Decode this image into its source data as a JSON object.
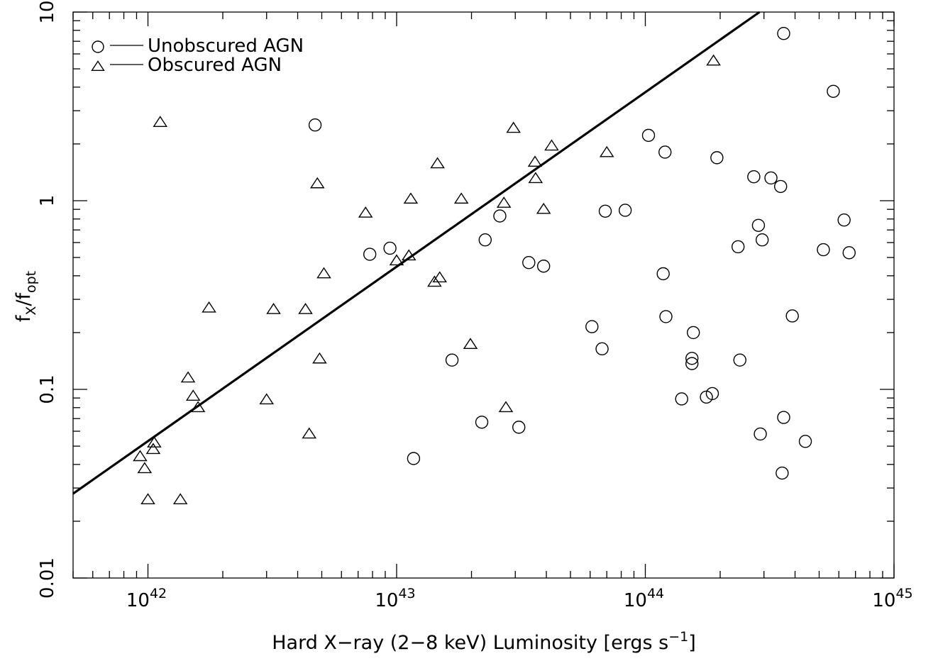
{
  "chart_data": {
    "type": "scatter",
    "x_scale": "log",
    "y_scale": "log",
    "xlim": [
      5e+41,
      1e+45
    ],
    "ylim": [
      0.01,
      10
    ],
    "xlabel": "Hard X−ray (2−8 keV) Luminosity [ergs s",
    "xlabel_sup": "−1",
    "xlabel_end": "]",
    "ylabel": "f",
    "ylabel_sub1": "X",
    "ylabel_mid": "/f",
    "ylabel_sub2": "opt",
    "x_ticks": [
      {
        "value": 1e+42,
        "base": "10",
        "exp": "42"
      },
      {
        "value": 1e+43,
        "base": "10",
        "exp": "43"
      },
      {
        "value": 1e+44,
        "base": "10",
        "exp": "44"
      },
      {
        "value": 1e+45,
        "base": "10",
        "exp": "45"
      }
    ],
    "y_ticks": [
      {
        "value": 0.01,
        "label": "0.01"
      },
      {
        "value": 0.1,
        "label": "0.1"
      },
      {
        "value": 1,
        "label": "1"
      },
      {
        "value": 10,
        "label": "10"
      }
    ],
    "grid": false,
    "legend_position": "top-left",
    "legend": [
      {
        "marker": "circle",
        "label": "Unobscured AGN"
      },
      {
        "marker": "triangle",
        "label": "Obscured AGN"
      }
    ],
    "fit_line": {
      "x": [
        5e+41,
        2.88e+44
      ],
      "y": [
        0.028,
        10
      ]
    },
    "series": [
      {
        "name": "Unobscured AGN",
        "marker": "circle",
        "points": [
          [
            4.7e+42,
            2.52
          ],
          [
            7.8e+42,
            0.52
          ],
          [
            9.4e+42,
            0.56
          ],
          [
            1.17e+43,
            0.043
          ],
          [
            1.67e+43,
            0.143
          ],
          [
            2.2e+43,
            0.067
          ],
          [
            2.27e+43,
            0.62
          ],
          [
            2.6e+43,
            0.83
          ],
          [
            3.1e+43,
            0.063
          ],
          [
            3.4e+43,
            0.47
          ],
          [
            3.9e+43,
            0.45
          ],
          [
            6.1e+43,
            0.215
          ],
          [
            6.7e+43,
            0.164
          ],
          [
            6.9e+43,
            0.88
          ],
          [
            8.3e+43,
            0.89
          ],
          [
            1.03e+44,
            2.22
          ],
          [
            1.18e+44,
            0.41
          ],
          [
            1.2e+44,
            1.81
          ],
          [
            1.21e+44,
            0.243
          ],
          [
            1.4e+44,
            0.089
          ],
          [
            1.54e+44,
            0.146
          ],
          [
            1.54e+44,
            0.137
          ],
          [
            1.56e+44,
            0.2
          ],
          [
            1.76e+44,
            0.091
          ],
          [
            1.86e+44,
            0.095
          ],
          [
            1.94e+44,
            1.69
          ],
          [
            2.36e+44,
            0.57
          ],
          [
            2.4e+44,
            0.143
          ],
          [
            2.73e+44,
            1.34
          ],
          [
            2.85e+44,
            0.74
          ],
          [
            2.9e+44,
            0.058
          ],
          [
            2.95e+44,
            0.62
          ],
          [
            3.2e+44,
            1.32
          ],
          [
            3.5e+44,
            1.19
          ],
          [
            3.55e+44,
            0.036
          ],
          [
            3.6e+44,
            7.7
          ],
          [
            3.6e+44,
            0.071
          ],
          [
            3.9e+44,
            0.245
          ],
          [
            4.4e+44,
            0.053
          ],
          [
            5.2e+44,
            0.55
          ],
          [
            5.7e+44,
            3.8
          ],
          [
            6.3e+44,
            0.79
          ],
          [
            6.6e+44,
            0.53
          ]
        ]
      },
      {
        "name": "Obscured AGN",
        "marker": "triangle",
        "points": [
          [
            9.3e+41,
            0.044
          ],
          [
            9.7e+41,
            0.038
          ],
          [
            1e+42,
            0.026
          ],
          [
            1.05e+42,
            0.048
          ],
          [
            1.06e+42,
            0.052
          ],
          [
            1.12e+42,
            2.6
          ],
          [
            1.35e+42,
            0.026
          ],
          [
            1.45e+42,
            0.115
          ],
          [
            1.52e+42,
            0.092
          ],
          [
            1.59e+42,
            0.08
          ],
          [
            1.76e+42,
            0.27
          ],
          [
            3e+42,
            0.088
          ],
          [
            3.2e+42,
            0.265
          ],
          [
            4.3e+42,
            0.265
          ],
          [
            4.45e+42,
            0.058
          ],
          [
            4.8e+42,
            1.23
          ],
          [
            4.9e+42,
            0.145
          ],
          [
            5.1e+42,
            0.41
          ],
          [
            7.5e+42,
            0.86
          ],
          [
            1e+43,
            0.48
          ],
          [
            1.12e+43,
            0.51
          ],
          [
            1.14e+43,
            1.02
          ],
          [
            1.42e+43,
            0.37
          ],
          [
            1.46e+43,
            1.57
          ],
          [
            1.49e+43,
            0.39
          ],
          [
            1.82e+43,
            1.02
          ],
          [
            1.98e+43,
            0.173
          ],
          [
            2.7e+43,
            0.97
          ],
          [
            2.75e+43,
            0.08
          ],
          [
            2.95e+43,
            2.42
          ],
          [
            3.6e+43,
            1.6
          ],
          [
            3.62e+43,
            1.31
          ],
          [
            3.9e+43,
            0.9
          ],
          [
            4.2e+43,
            1.95
          ],
          [
            7e+43,
            1.8
          ],
          [
            1.88e+44,
            5.5
          ]
        ]
      }
    ]
  }
}
